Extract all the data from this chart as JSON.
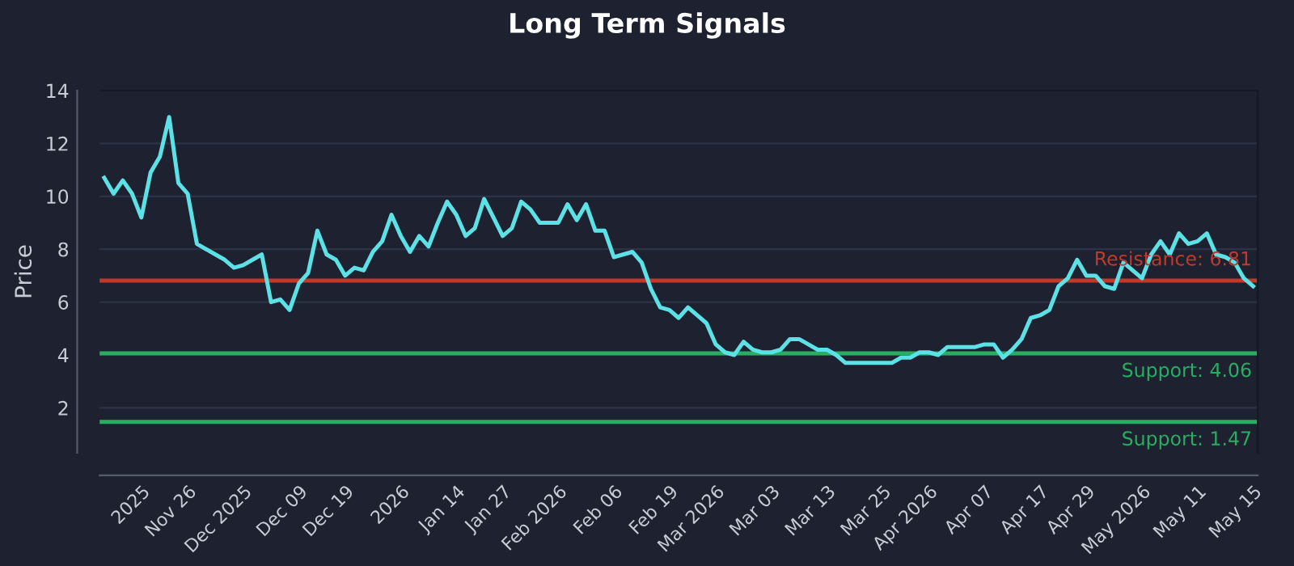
{
  "chart_data": {
    "type": "line",
    "title": "Long Term Signals",
    "ylabel": "Price",
    "categories": [
      null,
      null,
      null,
      null,
      "2025",
      null,
      null,
      null,
      null,
      "Nov 26",
      null,
      null,
      null,
      null,
      null,
      "Dec 2025",
      null,
      null,
      null,
      null,
      null,
      "Dec 09",
      null,
      null,
      null,
      null,
      "Dec 19",
      null,
      null,
      null,
      null,
      null,
      "2026",
      null,
      null,
      null,
      null,
      null,
      "Jan 14",
      null,
      null,
      null,
      null,
      "Jan 27",
      null,
      null,
      null,
      null,
      null,
      "Feb 2026",
      null,
      null,
      null,
      null,
      null,
      "Feb 06",
      null,
      null,
      null,
      null,
      null,
      "Feb 19",
      null,
      null,
      null,
      null,
      "Mar 2026",
      null,
      null,
      null,
      null,
      null,
      "Mar 03",
      null,
      null,
      null,
      null,
      null,
      "Mar 13",
      null,
      null,
      null,
      null,
      null,
      "Mar 25",
      null,
      null,
      null,
      null,
      "Apr 2026",
      null,
      null,
      null,
      null,
      null,
      "Apr 07",
      null,
      null,
      null,
      null,
      null,
      "Apr 17",
      null,
      null,
      null,
      null,
      "Apr 29",
      null,
      null,
      null,
      null,
      null,
      "May 2026",
      null,
      null,
      null,
      null,
      null,
      "May 11",
      null,
      null,
      null,
      null,
      null,
      "May 15"
    ],
    "series": [
      {
        "color": "#5ce1e6",
        "values": [
          10.7,
          10.1,
          10.6,
          10.1,
          9.2,
          10.9,
          11.5,
          13.0,
          10.5,
          10.1,
          8.2,
          8.0,
          7.8,
          7.6,
          7.3,
          7.4,
          7.6,
          7.8,
          6.0,
          6.1,
          5.7,
          6.7,
          7.1,
          8.7,
          7.8,
          7.6,
          7.0,
          7.3,
          7.2,
          7.9,
          8.3,
          9.3,
          8.5,
          7.9,
          8.5,
          8.1,
          9.0,
          9.8,
          9.3,
          8.5,
          8.8,
          9.9,
          9.2,
          8.5,
          8.8,
          9.8,
          9.5,
          9.0,
          9.0,
          9.0,
          9.7,
          9.1,
          9.7,
          8.7,
          8.7,
          7.7,
          7.8,
          7.9,
          7.5,
          6.5,
          5.8,
          5.7,
          5.4,
          5.8,
          5.5,
          5.2,
          4.4,
          4.1,
          4.0,
          4.5,
          4.2,
          4.1,
          4.1,
          4.2,
          4.6,
          4.6,
          4.4,
          4.2,
          4.2,
          4.0,
          3.7,
          3.7,
          3.7,
          3.7,
          3.7,
          3.7,
          3.9,
          3.9,
          4.1,
          4.1,
          4.0,
          4.3,
          4.3,
          4.3,
          4.3,
          4.4,
          4.4,
          3.9,
          4.2,
          4.6,
          5.4,
          5.5,
          5.7,
          6.6,
          6.9,
          7.6,
          7.0,
          7.0,
          6.6,
          6.5,
          7.5,
          7.2,
          6.9,
          7.8,
          8.3,
          7.8,
          8.6,
          8.2,
          8.3,
          8.6,
          7.8,
          7.7,
          7.5,
          6.9,
          6.6
        ]
      }
    ],
    "ylim": [
      0.3,
      14
    ],
    "yticks": [
      2,
      4,
      6,
      8,
      10,
      12,
      14
    ],
    "grid": "y",
    "legend": false,
    "marker": "none",
    "line_style": "solid",
    "ref_lines": [
      {
        "axis": "y",
        "value": 6.81,
        "label": "Resistance: 6.81",
        "color": "#c0392b"
      },
      {
        "axis": "y",
        "value": 4.06,
        "label": "Support: 4.06",
        "color": "#27ae60"
      },
      {
        "axis": "y",
        "value": 1.47,
        "label": "Support: 1.47",
        "color": "#27ae60"
      }
    ]
  }
}
